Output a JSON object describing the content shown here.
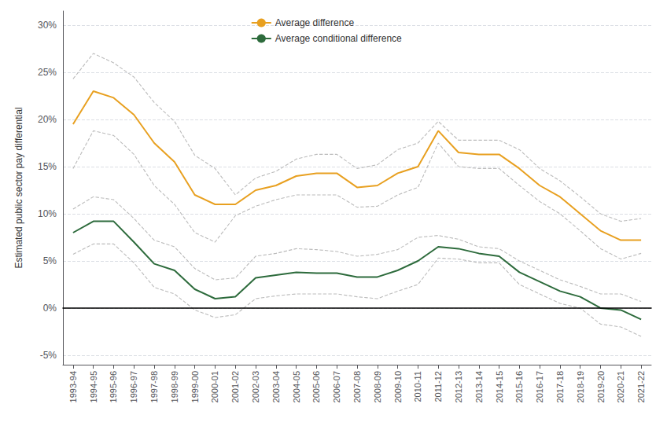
{
  "chart_data": {
    "type": "line",
    "ylabel": "Estimated public sector pay differential",
    "categories": [
      "1993-94",
      "1994-95",
      "1995-96",
      "1996-97",
      "1997-98",
      "1998-99",
      "1999-00",
      "2000-01",
      "2001-02",
      "2002-03",
      "2003-04",
      "2004-05",
      "2005-06",
      "2006-07",
      "2007-08",
      "2008-09",
      "2009-10",
      "2010-11",
      "2011-12",
      "2012-13",
      "2013-14",
      "2014-15",
      "2015-16",
      "2016-17",
      "2017-18",
      "2018-19",
      "2019-20",
      "2020-21",
      "2021-22"
    ],
    "series": [
      {
        "color": "#BBBBBB",
        "line_style": "dashed",
        "values": [
          0.243,
          0.27,
          0.26,
          0.245,
          0.218,
          0.198,
          0.162,
          0.148,
          0.12,
          0.138,
          0.145,
          0.158,
          0.163,
          0.163,
          0.148,
          0.152,
          0.168,
          0.175,
          0.198,
          0.178,
          0.178,
          0.178,
          0.168,
          0.148,
          0.135,
          0.118,
          0.1,
          0.092,
          0.095
        ]
      },
      {
        "color": "#BBBBBB",
        "line_style": "dashed",
        "values": [
          0.148,
          0.188,
          0.183,
          0.163,
          0.13,
          0.11,
          0.08,
          0.07,
          0.098,
          0.108,
          0.115,
          0.12,
          0.12,
          0.12,
          0.107,
          0.108,
          0.12,
          0.128,
          0.175,
          0.15,
          0.148,
          0.148,
          0.13,
          0.113,
          0.1,
          0.082,
          0.063,
          0.052,
          0.058
        ]
      },
      {
        "color": "#BBBBBB",
        "line_style": "dashed",
        "values": [
          0.105,
          0.118,
          0.115,
          0.095,
          0.072,
          0.065,
          0.042,
          0.03,
          0.032,
          0.055,
          0.058,
          0.063,
          0.062,
          0.06,
          0.055,
          0.057,
          0.062,
          0.075,
          0.077,
          0.073,
          0.065,
          0.063,
          0.05,
          0.04,
          0.03,
          0.023,
          0.015,
          0.015,
          0.007
        ]
      },
      {
        "color": "#BBBBBB",
        "line_style": "dashed",
        "values": [
          0.057,
          0.068,
          0.068,
          0.048,
          0.022,
          0.015,
          -0.002,
          -0.01,
          -0.007,
          0.01,
          0.013,
          0.015,
          0.015,
          0.015,
          0.012,
          0.01,
          0.018,
          0.025,
          0.053,
          0.052,
          0.048,
          0.048,
          0.025,
          0.015,
          0.005,
          0.0,
          -0.017,
          -0.02,
          -0.03
        ]
      },
      {
        "name": "Average difference",
        "color": "#E8A020",
        "line_style": "solid",
        "values": [
          0.195,
          0.23,
          0.223,
          0.205,
          0.175,
          0.155,
          0.12,
          0.11,
          0.11,
          0.125,
          0.13,
          0.14,
          0.143,
          0.143,
          0.128,
          0.13,
          0.143,
          0.15,
          0.188,
          0.165,
          0.163,
          0.163,
          0.148,
          0.13,
          0.118,
          0.1,
          0.082,
          0.072,
          0.072
        ]
      },
      {
        "name": "Average conditional difference",
        "color": "#2D6B3C",
        "line_style": "solid",
        "values": [
          0.08,
          0.092,
          0.092,
          0.07,
          0.047,
          0.04,
          0.02,
          0.01,
          0.012,
          0.032,
          0.035,
          0.038,
          0.037,
          0.037,
          0.033,
          0.033,
          0.04,
          0.05,
          0.065,
          0.063,
          0.058,
          0.055,
          0.038,
          0.028,
          0.018,
          0.012,
          0.0,
          -0.002,
          -0.012
        ]
      }
    ],
    "ylim": [
      -0.06,
      0.315
    ],
    "yticks": [
      {
        "value": -0.05,
        "label": "-5%"
      },
      {
        "value": 0.0,
        "label": "0%"
      },
      {
        "value": 0.05,
        "label": "5%"
      },
      {
        "value": 0.1,
        "label": "10%"
      },
      {
        "value": 0.15,
        "label": "15%"
      },
      {
        "value": 0.2,
        "label": "20%"
      },
      {
        "value": 0.25,
        "label": "25%"
      },
      {
        "value": 0.3,
        "label": "30%"
      }
    ],
    "grid": true,
    "legend": "upper left"
  }
}
